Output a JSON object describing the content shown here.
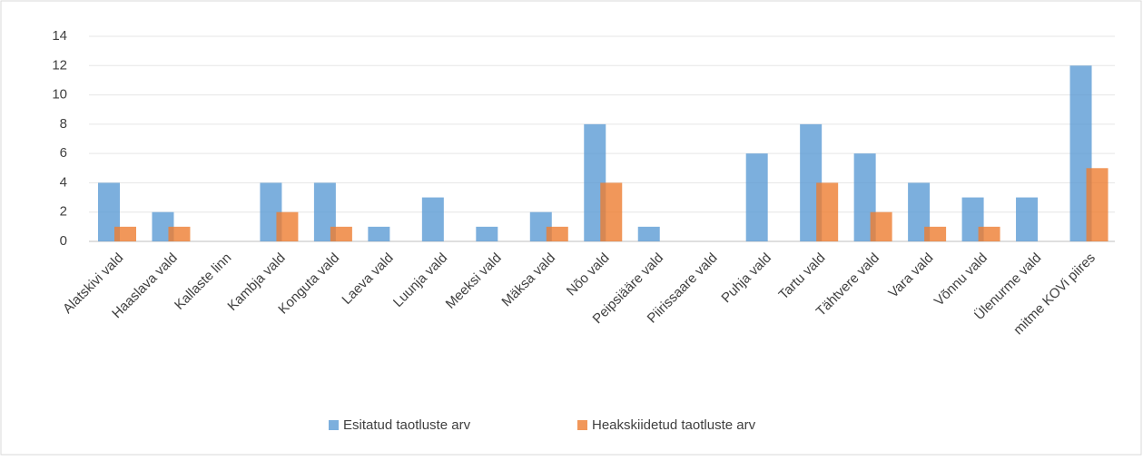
{
  "chart_data": {
    "type": "bar",
    "categories": [
      "Alatskivi vald",
      "Haaslava vald",
      "Kallaste linn",
      "Kambja vald",
      "Konguta vald",
      "Laeva vald",
      "Luunja vald",
      "Meeksi vald",
      "Mäksa vald",
      "Nõo vald",
      "Peipsiääre vald",
      "Piirissaare vald",
      "Puhja vald",
      "Tartu vald",
      "Tähtvere vald",
      "Vara vald",
      "Võnnu vald",
      "Ülenurme vald",
      "mitme KOVi piires"
    ],
    "series": [
      {
        "name": "Esitatud taotluste arv",
        "color": "#5b9bd5",
        "values": [
          4,
          2,
          0,
          4,
          4,
          1,
          3,
          1,
          2,
          8,
          1,
          0,
          6,
          8,
          6,
          4,
          3,
          3,
          12
        ]
      },
      {
        "name": "Heakskiidetud taotluste arv",
        "color": "#ed7d31",
        "values": [
          1,
          1,
          0,
          2,
          1,
          0,
          0,
          0,
          1,
          4,
          0,
          0,
          0,
          4,
          2,
          1,
          1,
          0,
          5
        ]
      }
    ],
    "ylim": [
      0,
      14
    ],
    "yticks": [
      0,
      2,
      4,
      6,
      8,
      10,
      12,
      14
    ],
    "grid": true,
    "legend": "bottom"
  }
}
